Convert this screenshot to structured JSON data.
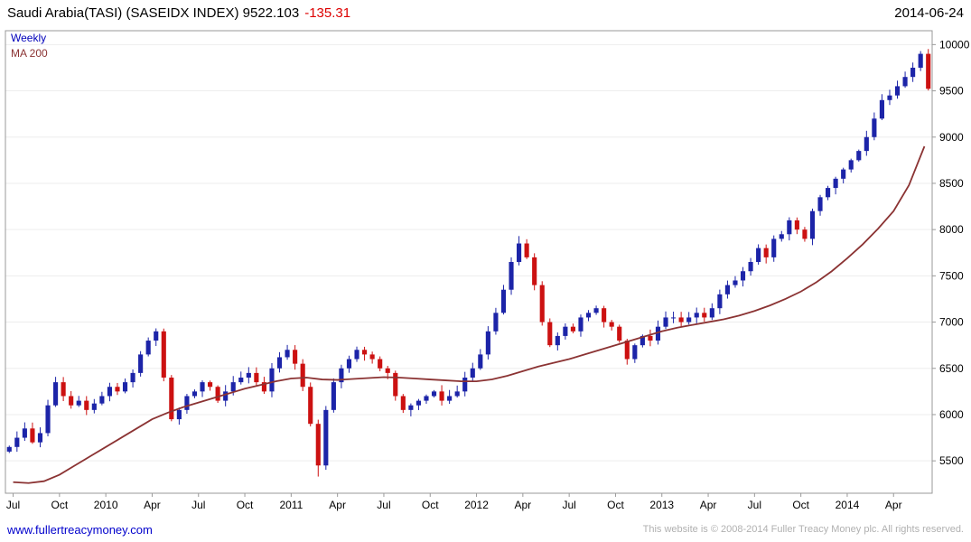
{
  "header": {
    "title": "Saudi Arabia(TASI) (SASEIDX INDEX) 9522.103",
    "change": "-135.31",
    "date": "2014-06-24"
  },
  "legend": {
    "series1": "Weekly",
    "series2": "MA 200"
  },
  "footer": {
    "link": "www.fullertreacymoney.com",
    "copyright": "This website is © 2008-2014 Fuller Treacy Money plc. All rights reserved."
  },
  "chart_data": {
    "type": "candlestick",
    "title": "Saudi Arabia(TASI) (SASEIDX INDEX)",
    "timeframe": "Weekly",
    "overlay": "MA 200",
    "last_price": 9522.103,
    "change": -135.31,
    "x_range": [
      "2009-07",
      "2014-06"
    ],
    "ylim": [
      5150,
      10150
    ],
    "y_ticks": [
      10000,
      9500,
      9000,
      8500,
      8000,
      7500,
      7000,
      6500,
      6000,
      5500
    ],
    "x_ticks": [
      {
        "label": "Jul",
        "month": 0
      },
      {
        "label": "Oct",
        "month": 3
      },
      {
        "label": "2010",
        "month": 6
      },
      {
        "label": "Apr",
        "month": 9
      },
      {
        "label": "Jul",
        "month": 12
      },
      {
        "label": "Oct",
        "month": 15
      },
      {
        "label": "2011",
        "month": 18
      },
      {
        "label": "Apr",
        "month": 21
      },
      {
        "label": "Jul",
        "month": 24
      },
      {
        "label": "Oct",
        "month": 27
      },
      {
        "label": "2012",
        "month": 30
      },
      {
        "label": "Apr",
        "month": 33
      },
      {
        "label": "Jul",
        "month": 36
      },
      {
        "label": "Oct",
        "month": 39
      },
      {
        "label": "2013",
        "month": 42
      },
      {
        "label": "Apr",
        "month": 45
      },
      {
        "label": "Jul",
        "month": 48
      },
      {
        "label": "Oct",
        "month": 51
      },
      {
        "label": "2014",
        "month": 54
      },
      {
        "label": "Apr",
        "month": 57
      }
    ],
    "first_open": 5600,
    "closes": [
      5650,
      5750,
      5850,
      5700,
      5800,
      6100,
      6350,
      6200,
      6100,
      6150,
      6050,
      6120,
      6200,
      6300,
      6250,
      6350,
      6450,
      6650,
      6800,
      6900,
      6400,
      5950,
      6050,
      6200,
      6250,
      6350,
      6300,
      6150,
      6250,
      6350,
      6400,
      6450,
      6350,
      6250,
      6500,
      6620,
      6700,
      6550,
      6300,
      5900,
      5450,
      6050,
      6350,
      6500,
      6600,
      6700,
      6650,
      6600,
      6500,
      6450,
      6200,
      6050,
      6100,
      6150,
      6200,
      6250,
      6150,
      6200,
      6250,
      6400,
      6500,
      6650,
      6900,
      7100,
      7350,
      7650,
      7850,
      7700,
      7400,
      7000,
      6750,
      6850,
      6950,
      6900,
      7050,
      7100,
      7150,
      7000,
      6950,
      6800,
      6600,
      6750,
      6850,
      6800,
      6950,
      7050,
      7050,
      7000,
      7050,
      7100,
      7050,
      7150,
      7300,
      7400,
      7450,
      7550,
      7650,
      7800,
      7700,
      7900,
      7950,
      8100,
      8000,
      7900,
      8200,
      8350,
      8450,
      8550,
      8650,
      8750,
      8850,
      9000,
      9200,
      9400,
      9450,
      9550,
      9650,
      9750,
      9900,
      9522.103
    ],
    "wick_overrides": [
      {
        "i": 40,
        "low": 5330
      },
      {
        "i": 66,
        "high": 7930
      },
      {
        "i": 118,
        "high": 9930
      }
    ],
    "ma200": [
      5270,
      5260,
      5280,
      5350,
      5450,
      5550,
      5650,
      5750,
      5850,
      5950,
      6020,
      6080,
      6130,
      6180,
      6230,
      6280,
      6320,
      6360,
      6390,
      6400,
      6380,
      6375,
      6385,
      6395,
      6405,
      6400,
      6390,
      6380,
      6370,
      6360,
      6360,
      6380,
      6420,
      6470,
      6520,
      6560,
      6600,
      6650,
      6700,
      6750,
      6800,
      6850,
      6900,
      6940,
      6970,
      7000,
      7030,
      7070,
      7120,
      7180,
      7250,
      7330,
      7430,
      7550,
      7690,
      7840,
      8010,
      8200,
      8480,
      8900
    ],
    "colors": {
      "up": "#1c24a8",
      "down": "#cc1111",
      "ma": "#8b3333",
      "grid": "#ededed",
      "frame": "#999999",
      "axis_text": "#000000"
    }
  }
}
